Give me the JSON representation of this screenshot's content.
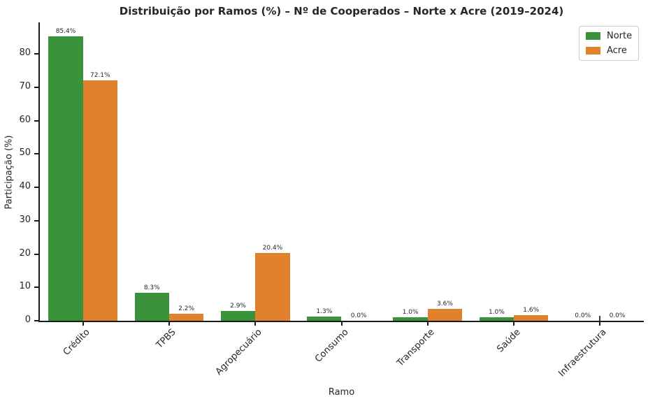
{
  "chart_data": {
    "type": "bar",
    "title": "Distribuição por Ramos (%) – Nº de Cooperados – Norte x Acre (2019–2024)",
    "xlabel": "Ramo",
    "ylabel": "Participação (%)",
    "categories": [
      "Crédito",
      "TPBS",
      "Agropecuário",
      "Consumo",
      "Transporte",
      "Saúde",
      "Infraestrutura"
    ],
    "series": [
      {
        "name": "Norte",
        "color": "#3a923a",
        "values": [
          85.4,
          8.3,
          2.9,
          1.3,
          1.0,
          1.0,
          0.0
        ]
      },
      {
        "name": "Acre",
        "color": "#e1812c",
        "values": [
          72.1,
          2.2,
          20.4,
          0.0,
          3.6,
          1.6,
          0.0
        ]
      }
    ],
    "value_labels": [
      "85.4%",
      "8.3%",
      "2.9%",
      "1.3%",
      "1.0%",
      "1.0%",
      "0.0%",
      "72.1%",
      "2.2%",
      "20.4%",
      "0.0%",
      "3.6%",
      "1.6%",
      "0.0%"
    ],
    "ylim": [
      0,
      89.5
    ],
    "yticks": [
      0,
      10,
      20,
      30,
      40,
      50,
      60,
      70,
      80
    ],
    "grid": false,
    "legend_position": "upper right",
    "bar_width_fraction": 0.8
  }
}
